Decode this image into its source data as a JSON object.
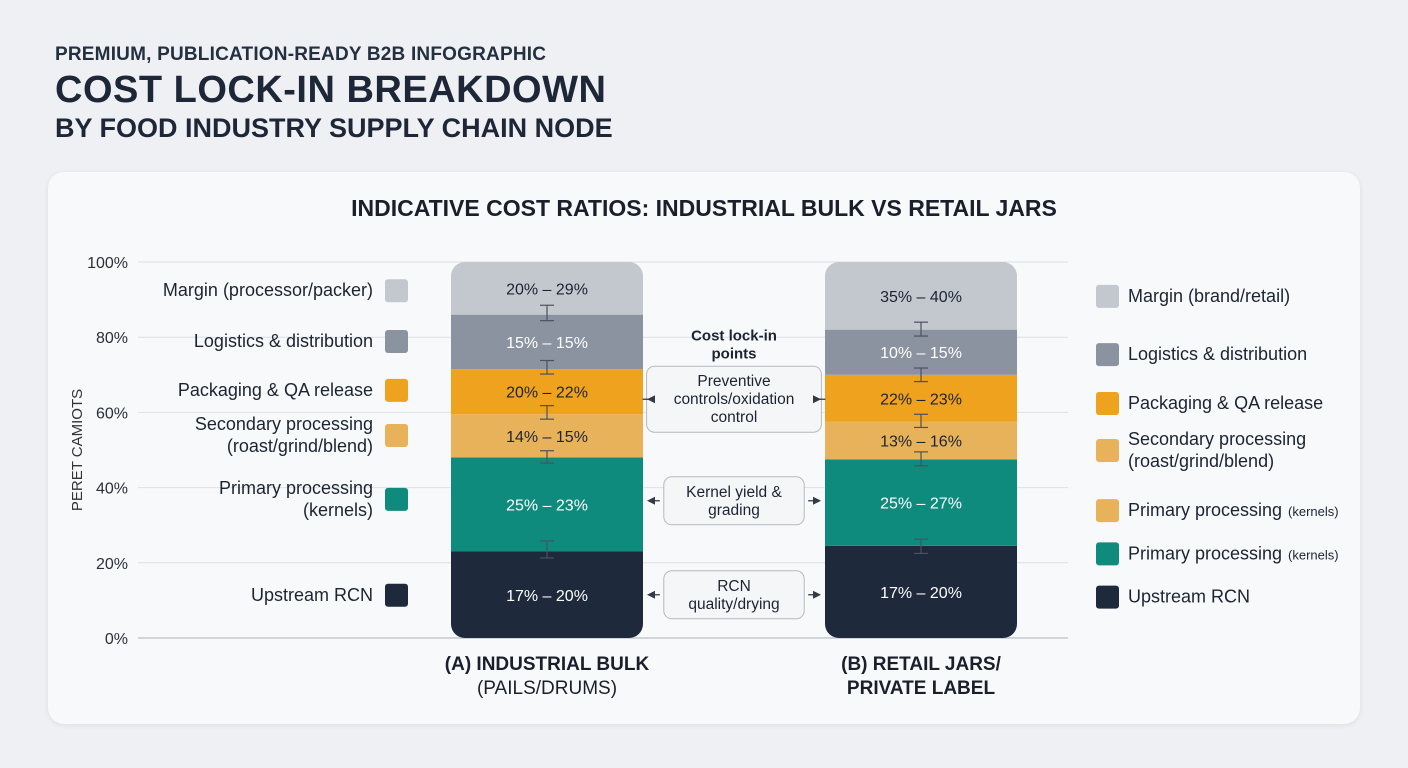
{
  "header": {
    "kicker": "PREMIUM, PUBLICATION-READY B2B INFOGRAPHIC",
    "title": "COST LOCK-IN BREAKDOWN",
    "subtitle": "BY FOOD INDUSTRY SUPPLY CHAIN NODE"
  },
  "chart_data": {
    "type": "bar",
    "stacked": true,
    "title": "INDICATIVE COST RATIOS: INDUSTRIAL BULK VS RETAIL JARS",
    "ylabel": "PERET CAMIOTS",
    "ylim": [
      0,
      100
    ],
    "yticks": [
      "0%",
      "20%",
      "40%",
      "60%",
      "80%",
      "100%"
    ],
    "grid": true,
    "colors": {
      "upstream": "#1e293b",
      "primary": "#0f8b7d",
      "secondary": "#e8b25a",
      "packaging": "#eea21d",
      "logistics": "#8a939f",
      "margin": "#c3c8ce"
    },
    "bars": [
      {
        "label_line1": "(A) INDUSTRIAL BULK",
        "label_line2": "(PAILS/DRUMS)",
        "segments": [
          {
            "key": "upstream",
            "start": 0,
            "end": 23,
            "label": "17% – 20%"
          },
          {
            "key": "primary",
            "start": 23,
            "end": 48,
            "label": "25% – 23%"
          },
          {
            "key": "secondary",
            "start": 48,
            "end": 59.5,
            "label": "14% – 15%"
          },
          {
            "key": "packaging",
            "start": 59.5,
            "end": 71.5,
            "label": "20% – 22%"
          },
          {
            "key": "logistics",
            "start": 71.5,
            "end": 86,
            "label": "15% – 15%"
          },
          {
            "key": "margin",
            "start": 86,
            "end": 100,
            "label": "20% – 29%"
          }
        ],
        "errors": [
          {
            "center": 23,
            "low": 21.3,
            "high": 25.8
          },
          {
            "center": 48,
            "low": 46.5,
            "high": 49.8
          },
          {
            "center": 59.5,
            "low": 58.2,
            "high": 61.8
          },
          {
            "center": 71.5,
            "low": 70.2,
            "high": 73.8
          },
          {
            "center": 86,
            "low": 84.4,
            "high": 88.5
          }
        ]
      },
      {
        "label_line1": "(B) RETAIL JARS/",
        "label_line2": "PRIVATE LABEL",
        "segments": [
          {
            "key": "upstream",
            "start": 0,
            "end": 24.5,
            "label": "17% – 20%"
          },
          {
            "key": "primary",
            "start": 24.5,
            "end": 47.5,
            "label": "25% – 27%"
          },
          {
            "key": "secondary",
            "start": 47.5,
            "end": 57.5,
            "label": "13% – 16%"
          },
          {
            "key": "packaging",
            "start": 57.5,
            "end": 70,
            "label": "22% – 23%"
          },
          {
            "key": "logistics",
            "start": 70,
            "end": 82,
            "label": "10% – 15%"
          },
          {
            "key": "margin",
            "start": 82,
            "end": 100,
            "label": "35% – 40%"
          }
        ],
        "errors": [
          {
            "center": 24.5,
            "low": 22.5,
            "high": 26.3
          },
          {
            "center": 47.5,
            "low": 45.8,
            "high": 49.5
          },
          {
            "center": 57.5,
            "low": 56.0,
            "high": 59.5
          },
          {
            "center": 70,
            "low": 68.2,
            "high": 71.8
          },
          {
            "center": 82,
            "low": 80.3,
            "high": 84.0
          }
        ]
      }
    ],
    "legend_left": [
      {
        "key": "margin",
        "lines": [
          "Margin (processor/packer)"
        ],
        "y": 92.5
      },
      {
        "key": "logistics",
        "lines": [
          "Logistics & distribution"
        ],
        "y": 79
      },
      {
        "key": "packaging",
        "lines": [
          "Packaging & QA release"
        ],
        "y": 66
      },
      {
        "key": "secondary",
        "lines": [
          "Secondary processing",
          "(roast/grind/blend)"
        ],
        "y": 54
      },
      {
        "key": "primary",
        "lines": [
          "Primary processing",
          "(kernels)"
        ],
        "y": 37
      },
      {
        "key": "upstream",
        "lines": [
          "Upstream RCN"
        ],
        "y": 11.5
      }
    ],
    "legend_right": [
      {
        "key": "margin",
        "text": "Margin (brand/retail)",
        "small": "",
        "y": 91
      },
      {
        "key": "logistics",
        "text": "Logistics & distribution",
        "small": "",
        "y": 75.5
      },
      {
        "key": "packaging",
        "text": "Packaging & QA release",
        "small": "",
        "y": 62.5
      },
      {
        "key": "secondary",
        "lines": [
          "Secondary processing",
          "(roast/grind/blend)"
        ],
        "y": 50
      },
      {
        "key": "secondary",
        "text": "Primary processing",
        "small": "(kernels)",
        "y": 34
      },
      {
        "key": "primary",
        "text": "Primary processing",
        "small": "(kernels)",
        "y": 22.5
      },
      {
        "key": "upstream",
        "text": "Upstream RCN",
        "small": "",
        "y": 11
      }
    ],
    "annotations": [
      {
        "lines": [
          "Cost lock-in",
          "points"
        ],
        "bold": true,
        "boxed": false,
        "y": 78
      },
      {
        "lines": [
          "Preventive",
          "controls/oxidation",
          "control"
        ],
        "boxed": true,
        "arrows": true,
        "y": 63.5
      },
      {
        "lines": [
          "Kernel yield &",
          "grading"
        ],
        "boxed": true,
        "arrows": true,
        "y": 36.5
      },
      {
        "lines": [
          "RCN",
          "quality/drying"
        ],
        "boxed": true,
        "arrows": true,
        "y": 11.5
      }
    ]
  }
}
